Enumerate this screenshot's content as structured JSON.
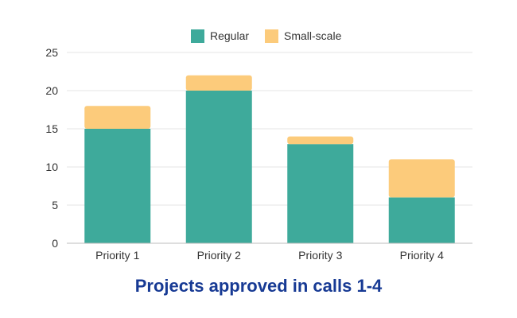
{
  "colors": {
    "regular": "#3eaa9b",
    "small_scale": "#fccb7b",
    "title": "#173a94",
    "grid": "#e6e6e6",
    "axis": "#bdbdbd",
    "text": "#333333"
  },
  "chart_data": {
    "type": "bar",
    "stacked": true,
    "title": "Projects approved in calls 1-4",
    "xlabel": "",
    "ylabel": "",
    "categories": [
      "Priority 1",
      "Priority 2",
      "Priority 3",
      "Priority 4"
    ],
    "series": [
      {
        "name": "Regular",
        "values": [
          15,
          20,
          13,
          6
        ]
      },
      {
        "name": "Small-scale",
        "values": [
          3,
          2,
          1,
          5
        ]
      }
    ],
    "ylim": [
      0,
      25
    ],
    "yticks": [
      0,
      5,
      10,
      15,
      20,
      25
    ],
    "grid": true,
    "legend_position": "top-center"
  }
}
